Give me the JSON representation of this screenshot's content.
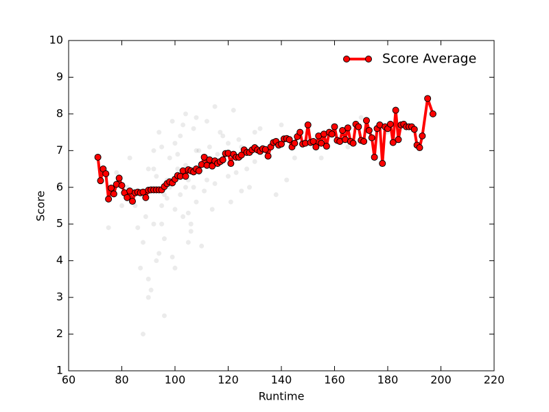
{
  "chart_data": {
    "type": "line",
    "xlabel": "Runtime",
    "ylabel": "Score",
    "xlim": [
      60,
      220
    ],
    "ylim": [
      1,
      10
    ],
    "xticks": [
      60,
      80,
      100,
      120,
      140,
      160,
      180,
      200,
      220
    ],
    "yticks": [
      1,
      2,
      3,
      4,
      5,
      6,
      7,
      8,
      9,
      10
    ],
    "legend": "upper right",
    "points": {
      "color": "#000000",
      "x": [
        82,
        85,
        88,
        90,
        92,
        94,
        95,
        96,
        98,
        100,
        102,
        104,
        105,
        106,
        108,
        110,
        112,
        114,
        116,
        118,
        120,
        122,
        125,
        128,
        130,
        135,
        140,
        145,
        150,
        160,
        88,
        90,
        93,
        95,
        97,
        99,
        101,
        103,
        105,
        107,
        109,
        111,
        113,
        115,
        118,
        121,
        124,
        127,
        90,
        92,
        94,
        96,
        98,
        100,
        102,
        104,
        106,
        108,
        110,
        112,
        115,
        120,
        125,
        130,
        86,
        89,
        91,
        93,
        95,
        97,
        99,
        101,
        103,
        105,
        107,
        109,
        80,
        83,
        87,
        92,
        96,
        100,
        104,
        108,
        112,
        117,
        123,
        132,
        138,
        155,
        170,
        75,
        78,
        142,
        165,
        180
      ],
      "y": [
        6.0,
        5.5,
        4.5,
        3.5,
        6.5,
        7.5,
        5.0,
        2.5,
        6.8,
        7.2,
        5.8,
        8.0,
        6.2,
        4.8,
        7.0,
        6.6,
        7.8,
        5.4,
        6.9,
        7.4,
        6.3,
        8.1,
        7.1,
        6.0,
        7.5,
        7.0,
        7.7,
        6.8,
        7.3,
        7.6,
        2.0,
        3.0,
        4.0,
        5.5,
        6.2,
        7.8,
        6.9,
        5.2,
        4.5,
        7.6,
        6.4,
        5.9,
        7.1,
        8.2,
        6.7,
        5.6,
        7.3,
        6.5,
        6.5,
        7.0,
        4.2,
        5.8,
        6.0,
        3.8,
        7.4,
        6.6,
        5.0,
        7.9,
        4.4,
        6.8,
        6.1,
        7.2,
        5.9,
        6.7,
        4.9,
        5.2,
        3.2,
        6.3,
        7.1,
        5.7,
        4.1,
        6.5,
        7.7,
        5.3,
        6.0,
        7.0,
        5.5,
        6.8,
        3.8,
        5.0,
        4.6,
        5.4,
        6.0,
        5.6,
        6.2,
        7.5,
        6.4,
        7.6,
        5.8,
        6.8,
        7.9,
        4.9,
        6.4,
        6.2,
        7.1,
        7.5
      ]
    },
    "series": [
      {
        "name": "Score Average",
        "color": "#ff0000",
        "x": [
          71,
          72,
          73,
          74,
          75,
          76,
          77,
          78,
          79,
          80,
          81,
          82,
          83,
          84,
          85,
          86,
          87,
          88,
          89,
          90,
          91,
          92,
          93,
          94,
          95,
          96,
          97,
          98,
          99,
          100,
          101,
          102,
          103,
          104,
          105,
          106,
          107,
          108,
          109,
          110,
          111,
          112,
          113,
          114,
          115,
          116,
          117,
          118,
          119,
          120,
          121,
          122,
          123,
          124,
          125,
          126,
          127,
          128,
          129,
          130,
          131,
          132,
          133,
          134,
          135,
          136,
          137,
          138,
          139,
          140,
          141,
          142,
          143,
          144,
          145,
          146,
          147,
          148,
          149,
          150,
          151,
          152,
          153,
          154,
          155,
          156,
          157,
          158,
          159,
          160,
          161,
          162,
          163,
          164,
          165,
          166,
          167,
          168,
          169,
          170,
          171,
          172,
          173,
          174,
          175,
          176,
          177,
          178,
          179,
          180,
          181,
          182,
          183,
          184,
          185,
          186,
          187,
          188,
          189,
          190,
          191,
          192,
          193,
          195,
          197
        ],
        "values": [
          6.82,
          6.18,
          6.5,
          6.37,
          5.68,
          5.98,
          5.82,
          6.08,
          6.25,
          6.05,
          5.85,
          5.72,
          5.9,
          5.62,
          5.85,
          5.87,
          5.85,
          5.87,
          5.72,
          5.92,
          5.93,
          5.93,
          5.93,
          5.93,
          5.93,
          6.02,
          6.1,
          6.15,
          6.12,
          6.22,
          6.32,
          6.3,
          6.45,
          6.3,
          6.48,
          6.45,
          6.42,
          6.5,
          6.45,
          6.62,
          6.82,
          6.6,
          6.75,
          6.58,
          6.72,
          6.65,
          6.7,
          6.75,
          6.92,
          6.93,
          6.65,
          6.9,
          6.82,
          6.82,
          6.88,
          7.02,
          6.95,
          6.95,
          7.02,
          7.08,
          7.02,
          6.98,
          7.05,
          7.03,
          6.85,
          7.1,
          7.22,
          7.25,
          7.15,
          7.18,
          7.32,
          7.33,
          7.3,
          7.1,
          7.2,
          7.38,
          7.5,
          7.18,
          7.2,
          7.7,
          7.22,
          7.25,
          7.1,
          7.4,
          7.2,
          7.45,
          7.12,
          7.5,
          7.45,
          7.65,
          7.28,
          7.25,
          7.55,
          7.3,
          7.62,
          7.25,
          7.2,
          7.72,
          7.65,
          7.28,
          7.25,
          7.82,
          7.55,
          7.35,
          6.82,
          7.6,
          7.7,
          6.65,
          7.65,
          7.6,
          7.72,
          7.22,
          8.1,
          7.3,
          7.7,
          7.72,
          7.65,
          7.65,
          7.65,
          7.58,
          7.15,
          7.08,
          7.4,
          8.42,
          8.0
        ]
      }
    ]
  }
}
